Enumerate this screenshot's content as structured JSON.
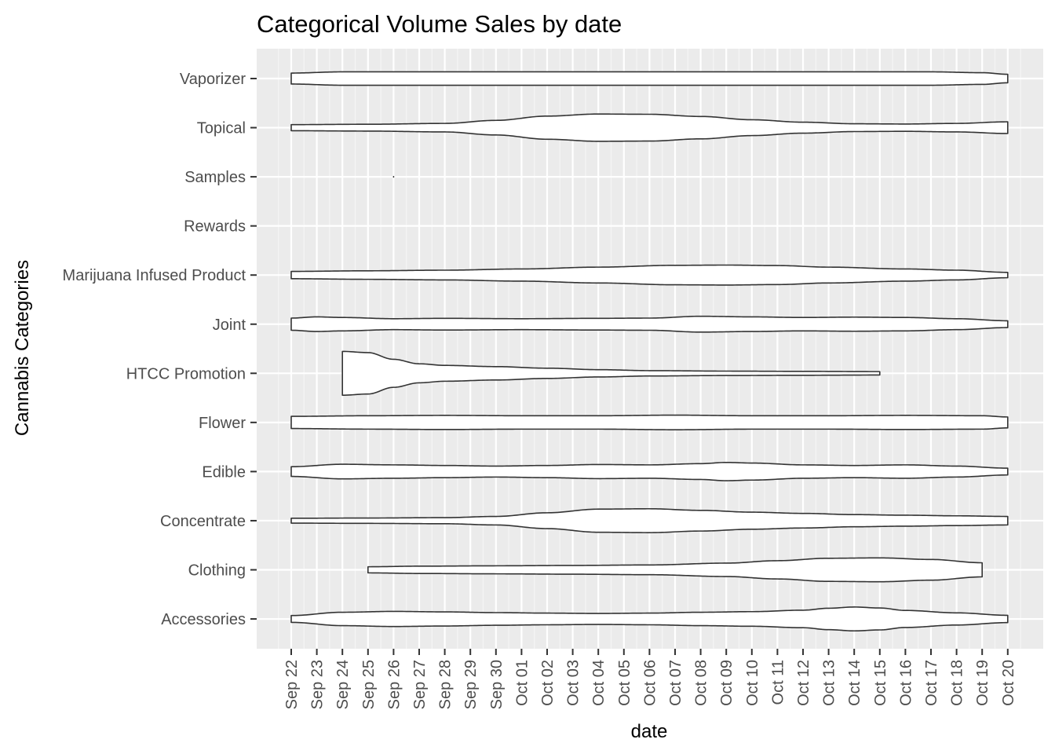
{
  "colors": {
    "panel_background": "#ebebeb",
    "grid_major": "#ffffff",
    "grid_minor": "#f5f5f5",
    "violin_fill": "#ffffff",
    "violin_stroke": "#333333",
    "tick_text": "#4d4d4d"
  },
  "chart_data": {
    "type": "violin",
    "title": "Categorical Volume Sales by date",
    "xlabel": "date",
    "ylabel": "Cannabis Categories",
    "grid": true,
    "legend": "none",
    "x_ticks": [
      "Sep 22",
      "Sep 23",
      "Sep 24",
      "Sep 25",
      "Sep 26",
      "Sep 27",
      "Sep 28",
      "Sep 29",
      "Sep 30",
      "Oct 01",
      "Oct 02",
      "Oct 03",
      "Oct 04",
      "Oct 05",
      "Oct 06",
      "Oct 07",
      "Oct 08",
      "Oct 09",
      "Oct 10",
      "Oct 11",
      "Oct 12",
      "Oct 13",
      "Oct 14",
      "Oct 15",
      "Oct 16",
      "Oct 17",
      "Oct 18",
      "Oct 19",
      "Oct 20"
    ],
    "categories": [
      "Accessories",
      "Clothing",
      "Concentrate",
      "Edible",
      "Flower",
      "HTCC Promotion",
      "Joint",
      "Marijuana Infused Product",
      "Rewards",
      "Samples",
      "Topical",
      "Vaporizer"
    ],
    "series": [
      {
        "category": "Accessories",
        "start": "Sep 22",
        "end": "Oct 20",
        "density": [
          [
            0,
            0.28
          ],
          [
            2,
            0.55
          ],
          [
            4,
            0.62
          ],
          [
            6,
            0.58
          ],
          [
            8,
            0.52
          ],
          [
            10,
            0.48
          ],
          [
            12,
            0.45
          ],
          [
            14,
            0.48
          ],
          [
            16,
            0.55
          ],
          [
            18,
            0.6
          ],
          [
            20,
            0.72
          ],
          [
            21,
            0.88
          ],
          [
            22,
            0.98
          ],
          [
            23,
            0.9
          ],
          [
            24,
            0.7
          ],
          [
            26,
            0.5
          ],
          [
            28,
            0.3
          ]
        ]
      },
      {
        "category": "Clothing",
        "start": "Sep 25",
        "end": "Oct 19",
        "density": [
          [
            3,
            0.25
          ],
          [
            5,
            0.3
          ],
          [
            8,
            0.33
          ],
          [
            11,
            0.36
          ],
          [
            14,
            0.4
          ],
          [
            17,
            0.55
          ],
          [
            19,
            0.75
          ],
          [
            21,
            0.95
          ],
          [
            23,
            0.98
          ],
          [
            25,
            0.85
          ],
          [
            27,
            0.58
          ]
        ]
      },
      {
        "category": "Concentrate",
        "start": "Sep 22",
        "end": "Oct 20",
        "density": [
          [
            0,
            0.2
          ],
          [
            3,
            0.22
          ],
          [
            6,
            0.25
          ],
          [
            8,
            0.35
          ],
          [
            10,
            0.65
          ],
          [
            12,
            0.95
          ],
          [
            14,
            0.98
          ],
          [
            16,
            0.85
          ],
          [
            18,
            0.7
          ],
          [
            20,
            0.6
          ],
          [
            22,
            0.5
          ],
          [
            24,
            0.45
          ],
          [
            26,
            0.4
          ],
          [
            28,
            0.35
          ]
        ]
      },
      {
        "category": "Edible",
        "start": "Sep 22",
        "end": "Oct 20",
        "density": [
          [
            0,
            0.4
          ],
          [
            2,
            0.6
          ],
          [
            4,
            0.55
          ],
          [
            6,
            0.5
          ],
          [
            8,
            0.45
          ],
          [
            10,
            0.5
          ],
          [
            12,
            0.58
          ],
          [
            14,
            0.55
          ],
          [
            16,
            0.65
          ],
          [
            17,
            0.75
          ],
          [
            18,
            0.7
          ],
          [
            20,
            0.55
          ],
          [
            22,
            0.5
          ],
          [
            24,
            0.55
          ],
          [
            26,
            0.45
          ],
          [
            28,
            0.28
          ]
        ]
      },
      {
        "category": "Flower",
        "start": "Sep 22",
        "end": "Oct 20",
        "density": [
          [
            0,
            0.5
          ],
          [
            3,
            0.55
          ],
          [
            6,
            0.58
          ],
          [
            9,
            0.55
          ],
          [
            12,
            0.55
          ],
          [
            15,
            0.6
          ],
          [
            18,
            0.55
          ],
          [
            21,
            0.55
          ],
          [
            24,
            0.58
          ],
          [
            27,
            0.55
          ],
          [
            28,
            0.45
          ]
        ]
      },
      {
        "category": "HTCC Promotion",
        "start": "Sep 24",
        "end": "Oct 15",
        "density": [
          [
            2,
            1.8
          ],
          [
            3,
            1.7
          ],
          [
            4,
            1.15
          ],
          [
            5,
            0.78
          ],
          [
            6,
            0.65
          ],
          [
            8,
            0.55
          ],
          [
            10,
            0.42
          ],
          [
            12,
            0.3
          ],
          [
            14,
            0.22
          ],
          [
            17,
            0.18
          ],
          [
            20,
            0.16
          ],
          [
            23,
            0.14
          ]
        ]
      },
      {
        "category": "Joint",
        "start": "Sep 22",
        "end": "Oct 20",
        "density": [
          [
            0,
            0.5
          ],
          [
            1,
            0.6
          ],
          [
            2,
            0.55
          ],
          [
            4,
            0.45
          ],
          [
            6,
            0.48
          ],
          [
            9,
            0.45
          ],
          [
            12,
            0.48
          ],
          [
            14,
            0.5
          ],
          [
            16,
            0.65
          ],
          [
            18,
            0.6
          ],
          [
            20,
            0.55
          ],
          [
            22,
            0.58
          ],
          [
            24,
            0.55
          ],
          [
            26,
            0.45
          ],
          [
            28,
            0.28
          ]
        ]
      },
      {
        "category": "Marijuana Infused Product",
        "start": "Sep 22",
        "end": "Oct 20",
        "density": [
          [
            0,
            0.3
          ],
          [
            3,
            0.35
          ],
          [
            6,
            0.4
          ],
          [
            9,
            0.5
          ],
          [
            12,
            0.65
          ],
          [
            15,
            0.8
          ],
          [
            17,
            0.82
          ],
          [
            19,
            0.78
          ],
          [
            21,
            0.65
          ],
          [
            24,
            0.5
          ],
          [
            26,
            0.4
          ],
          [
            28,
            0.22
          ]
        ]
      },
      {
        "category": "Rewards",
        "start": "",
        "end": "",
        "density": []
      },
      {
        "category": "Samples",
        "start": "Sep 26",
        "end": "Sep 26",
        "density": [
          [
            4,
            0.02
          ],
          [
            4.001,
            0.02
          ]
        ]
      },
      {
        "category": "Topical",
        "start": "Sep 22",
        "end": "Oct 20",
        "density": [
          [
            0,
            0.25
          ],
          [
            3,
            0.28
          ],
          [
            6,
            0.35
          ],
          [
            8,
            0.6
          ],
          [
            10,
            0.95
          ],
          [
            12,
            1.12
          ],
          [
            14,
            1.1
          ],
          [
            16,
            0.92
          ],
          [
            18,
            0.65
          ],
          [
            20,
            0.45
          ],
          [
            22,
            0.32
          ],
          [
            24,
            0.3
          ],
          [
            26,
            0.35
          ],
          [
            28,
            0.48
          ]
        ]
      },
      {
        "category": "Vaporizer",
        "start": "Sep 22",
        "end": "Oct 20",
        "density": [
          [
            0,
            0.45
          ],
          [
            2,
            0.55
          ],
          [
            6,
            0.55
          ],
          [
            10,
            0.55
          ],
          [
            14,
            0.55
          ],
          [
            18,
            0.55
          ],
          [
            22,
            0.55
          ],
          [
            25,
            0.55
          ],
          [
            27,
            0.48
          ],
          [
            28,
            0.35
          ]
        ]
      }
    ]
  }
}
